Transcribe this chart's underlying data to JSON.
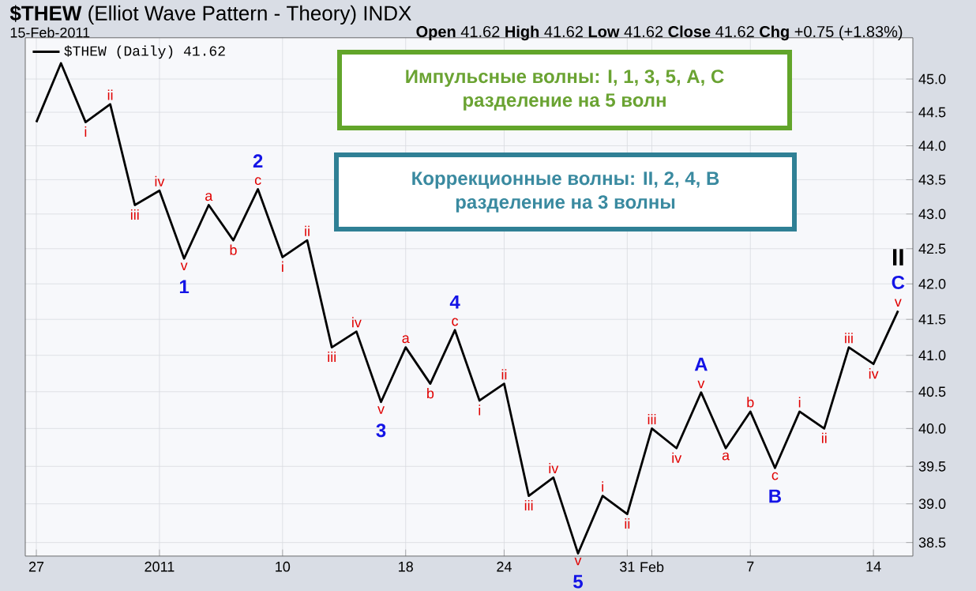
{
  "chart_data": {
    "type": "line",
    "title": "**$THEW** (Elliot Wave Pattern - Theory) INDX",
    "subtitle": "15-Feb-2011",
    "categories": [
      "27",
      null,
      null,
      null,
      null,
      "2011",
      null,
      null,
      null,
      null,
      "10",
      null,
      null,
      null,
      null,
      "18",
      null,
      null,
      null,
      "24",
      null,
      null,
      null,
      null,
      "31",
      "Feb",
      null,
      null,
      null,
      "7",
      null,
      null,
      null,
      null,
      "14",
      null
    ],
    "series": [
      {
        "name": "$THEW (Daily) 41.62",
        "color": "#000000",
        "values": [
          44.35,
          45.24,
          44.35,
          44.62,
          43.13,
          43.34,
          42.36,
          43.13,
          42.62,
          43.36,
          42.38,
          42.62,
          41.11,
          41.33,
          40.36,
          41.11,
          40.61,
          41.35,
          40.38,
          40.61,
          39.11,
          39.35,
          38.36,
          39.11,
          38.87,
          40.0,
          39.74,
          40.49,
          39.74,
          40.23,
          39.48,
          40.23,
          40.0,
          41.11,
          40.88,
          41.62
        ],
        "value_labels": [
          null,
          null,
          "i",
          "ii",
          "iii",
          "iv",
          "v",
          "a",
          "b",
          "c",
          "i",
          "ii",
          "iii",
          "iv",
          "v",
          "a",
          "b",
          "c",
          "i",
          "ii",
          "iii",
          "iv",
          "v",
          "i",
          "ii",
          "iii",
          "iv",
          "v",
          "a",
          "b",
          "c",
          "i",
          "ii",
          "iii",
          "iv",
          "v"
        ]
      }
    ],
    "ylim": [
      38.32,
      45.63
    ],
    "yticks": [
      {
        "value": 38.5,
        "label": "38.5"
      },
      {
        "value": 39,
        "label": "39.0"
      },
      {
        "value": 39.5,
        "label": "39.5"
      },
      {
        "value": 40,
        "label": "40.0"
      },
      {
        "value": 40.5,
        "label": "40.5"
      },
      {
        "value": 41,
        "label": "41.0"
      },
      {
        "value": 41.5,
        "label": "41.5"
      },
      {
        "value": 42,
        "label": "42.0"
      },
      {
        "value": 42.5,
        "label": "42.5"
      },
      {
        "value": 43,
        "label": "43.0"
      },
      {
        "value": 43.5,
        "label": "43.5"
      },
      {
        "value": 44,
        "label": "44.0"
      },
      {
        "value": 44.5,
        "label": "44.5"
      },
      {
        "value": 45,
        "label": "45.0"
      }
    ],
    "log": "y",
    "grid": true,
    "legend": "top left",
    "marker": "none",
    "line_style": "solid",
    "annotations": [
      "**Open** 41.62 **High** 41.62 **Low** 41.62 **Close** 41.62 **Chg** +0.75 (+1.83%)",
      "Импульсные волны: I, 1, 3, 5, A, C разделение на 5 волн",
      "Коррекционные волны: II, 2, 4, B разделение на 3 волны",
      {
        "text": "1",
        "y": 42.36
      },
      {
        "text": "2",
        "y": 43.36
      },
      {
        "text": "3",
        "y": 40.36
      },
      {
        "text": "4",
        "y": 41.35
      },
      {
        "text": "5",
        "y": 38.36
      },
      {
        "text": "A",
        "y": 40.49
      },
      {
        "text": "B",
        "y": 39.48
      },
      {
        "text": "C",
        "y": 41.62
      },
      {
        "text": "II",
        "y": 41.62
      }
    ]
  }
}
